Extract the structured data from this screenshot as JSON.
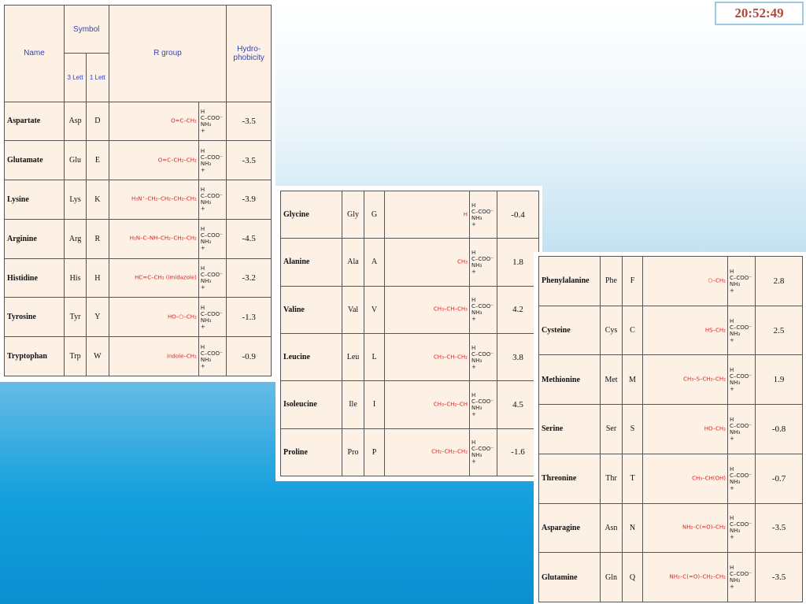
{
  "clock": "20:52:49",
  "table1": {
    "headers": {
      "name": "Name",
      "symbol": "Symbol",
      "three": "3 Lett",
      "one": "1 Lett",
      "rgroup": "R group",
      "hydro": "Hydro-phobicity"
    },
    "rows": [
      {
        "name": "Aspartate",
        "three": "Asp",
        "one": "D",
        "r": "O=C–CH₂",
        "hydro": "-3.5"
      },
      {
        "name": "Glutamate",
        "three": "Glu",
        "one": "E",
        "r": "O=C–CH₂–CH₂",
        "hydro": "-3.5"
      },
      {
        "name": "Lysine",
        "three": "Lys",
        "one": "K",
        "r": "H₃N⁺–CH₂–CH₂–CH₂–CH₂",
        "hydro": "-3.9"
      },
      {
        "name": "Arginine",
        "three": "Arg",
        "one": "R",
        "r": "H₂N–C–NH–CH₂–CH₂–CH₂",
        "hydro": "-4.5"
      },
      {
        "name": "Histidine",
        "three": "His",
        "one": "H",
        "r": "HC=C–CH₂ (imidazole)",
        "hydro": "-3.2"
      },
      {
        "name": "Tyrosine",
        "three": "Tyr",
        "one": "Y",
        "r": "HO–⬡–CH₂",
        "hydro": "-1.3"
      },
      {
        "name": "Tryptophan",
        "three": "Trp",
        "one": "W",
        "r": "indole–CH₂",
        "hydro": "-0.9"
      }
    ]
  },
  "table2": {
    "rows": [
      {
        "name": "Glycine",
        "three": "Gly",
        "one": "G",
        "r": "H",
        "hydro": "-0.4"
      },
      {
        "name": "Alanine",
        "three": "Ala",
        "one": "A",
        "r": "CH₃",
        "hydro": "1.8"
      },
      {
        "name": "Valine",
        "three": "Val",
        "one": "V",
        "r": "CH₃–CH–CH₃",
        "hydro": "4.2"
      },
      {
        "name": "Leucine",
        "three": "Leu",
        "one": "L",
        "r": "CH₃–CH–CH₂",
        "hydro": "3.8"
      },
      {
        "name": "Isoleucine",
        "three": "Ile",
        "one": "I",
        "r": "CH₃–CH₂–CH",
        "hydro": "4.5"
      },
      {
        "name": "Proline",
        "three": "Pro",
        "one": "P",
        "r": "CH₂–CH₂–CH₂",
        "hydro": "-1.6"
      }
    ]
  },
  "table3": {
    "rows": [
      {
        "name": "Phenylalanine",
        "three": "Phe",
        "one": "F",
        "r": "⬡–CH₂",
        "hydro": "2.8"
      },
      {
        "name": "Cysteine",
        "three": "Cys",
        "one": "C",
        "r": "HS–CH₂",
        "hydro": "2.5"
      },
      {
        "name": "Methionine",
        "three": "Met",
        "one": "M",
        "r": "CH₃–S–CH₂–CH₂",
        "hydro": "1.9"
      },
      {
        "name": "Serine",
        "three": "Ser",
        "one": "S",
        "r": "HO–CH₂",
        "hydro": "-0.8"
      },
      {
        "name": "Threonine",
        "three": "Thr",
        "one": "T",
        "r": "CH₃–CH(OH)",
        "hydro": "-0.7"
      },
      {
        "name": "Asparagine",
        "three": "Asn",
        "one": "N",
        "r": "NH₂–C(=O)–CH₂",
        "hydro": "-3.5"
      },
      {
        "name": "Glutamine",
        "three": "Gln",
        "one": "Q",
        "r": "NH₂–C(=O)–CH₂–CH₂",
        "hydro": "-3.5"
      }
    ]
  },
  "backbone": {
    "h": "H",
    "c": "C",
    "coo": "–COO⁻",
    "nh3": "NH₃",
    "plus": "+"
  }
}
